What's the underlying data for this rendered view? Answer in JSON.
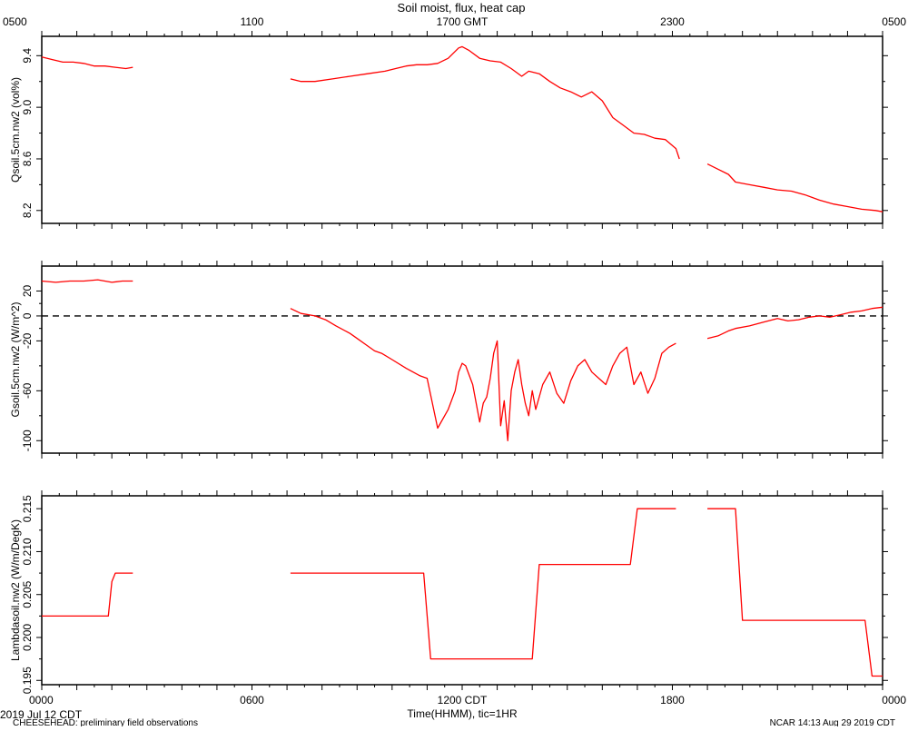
{
  "figure": {
    "title": "Soil moist, flux, heat cap",
    "top_axis_label": "1700 GMT",
    "bottom_axis_label": "Time(HHMM), tic=1HR",
    "bottom_center_label": "1200 CDT",
    "date_label": "2019 Jul 12 CDT",
    "footer_left": "CHEESEHEAD: preliminary field observations",
    "footer_right": "NCAR 14:13 Aug 29 2019 CDT",
    "series_color": "#ff0000"
  },
  "chart_data": [
    {
      "type": "line",
      "ylabel": "Qsoil.5cm.nw2 (vol%)",
      "ylim": [
        8.1,
        9.55
      ],
      "yticks": [
        "8.2",
        "8.6",
        "9.0",
        "9.4"
      ],
      "x_unit": "hours since 0000 CDT",
      "xlim": [
        0,
        24
      ],
      "top_ticks": [
        "0500",
        "1100",
        "1700 GMT",
        "2300",
        "0500"
      ],
      "segments": [
        {
          "x": [
            0,
            0.3,
            0.6,
            0.9,
            1.2,
            1.5,
            1.8,
            2.1,
            2.4,
            2.6
          ],
          "y": [
            9.39,
            9.37,
            9.35,
            9.35,
            9.34,
            9.32,
            9.32,
            9.31,
            9.3,
            9.31
          ]
        },
        {
          "x": [
            7.1,
            7.4,
            7.8,
            8.3,
            8.8,
            9.3,
            9.8,
            10.1,
            10.4,
            10.7,
            11.0,
            11.3,
            11.6,
            11.9,
            12.0,
            12.2,
            12.5,
            12.8,
            13.1,
            13.4,
            13.7,
            13.9,
            14.2,
            14.5,
            14.8,
            15.1,
            15.4,
            15.7,
            16.0,
            16.3,
            16.6,
            16.9,
            17.2,
            17.5,
            17.8,
            18.1,
            18.2
          ],
          "y": [
            9.22,
            9.2,
            9.2,
            9.22,
            9.24,
            9.26,
            9.28,
            9.3,
            9.32,
            9.33,
            9.33,
            9.34,
            9.38,
            9.46,
            9.47,
            9.44,
            9.38,
            9.36,
            9.35,
            9.3,
            9.24,
            9.28,
            9.26,
            9.2,
            9.15,
            9.12,
            9.08,
            9.12,
            9.05,
            8.92,
            8.86,
            8.8,
            8.79,
            8.76,
            8.75,
            8.68,
            8.6
          ]
        },
        {
          "x": [
            19.0,
            19.3,
            19.6,
            19.8,
            20.2,
            20.6,
            21.0,
            21.4,
            21.8,
            22.2,
            22.6,
            23.0,
            23.4,
            23.8,
            24.0
          ],
          "y": [
            8.56,
            8.52,
            8.48,
            8.42,
            8.4,
            8.38,
            8.36,
            8.35,
            8.32,
            8.28,
            8.25,
            8.23,
            8.21,
            8.2,
            8.19
          ]
        }
      ]
    },
    {
      "type": "line",
      "ylabel": "Gsoil.5cm.nw2 (W/m^2)",
      "ylim": [
        -110,
        40
      ],
      "yticks": [
        "-100",
        "-60",
        "-20",
        "0",
        "20"
      ],
      "reference_line": 0,
      "x_unit": "hours since 0000 CDT",
      "xlim": [
        0,
        24
      ],
      "segments": [
        {
          "x": [
            0,
            0.4,
            0.8,
            1.2,
            1.6,
            2.0,
            2.3,
            2.6
          ],
          "y": [
            28,
            27,
            28,
            28,
            29,
            27,
            28,
            28
          ]
        },
        {
          "x": [
            7.1,
            7.4,
            7.8,
            8.1,
            8.4,
            8.8,
            9.0,
            9.3,
            9.5,
            9.7,
            10.0,
            10.4,
            10.8,
            11.0,
            11.3,
            11.6,
            11.8,
            11.9,
            12.0,
            12.1,
            12.3,
            12.5,
            12.6,
            12.7,
            12.8,
            12.9,
            13.0,
            13.1,
            13.2,
            13.3,
            13.4,
            13.5,
            13.6,
            13.7,
            13.8,
            13.9,
            14.0,
            14.1,
            14.3,
            14.5,
            14.7,
            14.9,
            15.1,
            15.3,
            15.5,
            15.7,
            15.9,
            16.1,
            16.3,
            16.5,
            16.7,
            16.9,
            17.1,
            17.3,
            17.5,
            17.7,
            17.9,
            18.1
          ],
          "y": [
            6,
            2,
            0,
            -3,
            -8,
            -14,
            -18,
            -24,
            -28,
            -30,
            -35,
            -42,
            -48,
            -50,
            -90,
            -75,
            -60,
            -45,
            -38,
            -40,
            -55,
            -85,
            -70,
            -65,
            -50,
            -30,
            -20,
            -88,
            -68,
            -100,
            -60,
            -45,
            -35,
            -55,
            -70,
            -80,
            -60,
            -75,
            -55,
            -45,
            -62,
            -70,
            -52,
            -40,
            -35,
            -45,
            -50,
            -55,
            -40,
            -30,
            -25,
            -55,
            -45,
            -62,
            -50,
            -30,
            -25,
            -22
          ]
        },
        {
          "x": [
            19.0,
            19.3,
            19.6,
            19.8,
            20.2,
            20.6,
            21.0,
            21.3,
            21.6,
            21.9,
            22.2,
            22.5,
            22.8,
            23.1,
            23.4,
            23.7,
            24.0
          ],
          "y": [
            -18,
            -16,
            -12,
            -10,
            -8,
            -5,
            -2,
            -4,
            -3,
            -1,
            0,
            -1,
            1,
            3,
            4,
            6,
            7
          ]
        }
      ]
    },
    {
      "type": "line",
      "ylabel": "Lambdasoil.nw2 (W/m/DegK)",
      "ylim": [
        0.1945,
        0.2165
      ],
      "yticks": [
        "0.195",
        "0.200",
        "0.205",
        "0.210",
        "0.215"
      ],
      "x_unit": "hours since 0000 CDT",
      "xlim": [
        0,
        24
      ],
      "bottom_ticks": [
        "0000",
        "0600",
        "1200 CDT",
        "1800",
        "0000"
      ],
      "segments": [
        {
          "x": [
            0,
            1.9,
            2.0,
            2.1,
            2.6
          ],
          "y": [
            0.2025,
            0.2025,
            0.2065,
            0.2075,
            0.2075
          ]
        },
        {
          "x": [
            7.1,
            10.9,
            11.1,
            14.0,
            14.2,
            16.8,
            17.0,
            18.1
          ],
          "y": [
            0.2075,
            0.2075,
            0.1975,
            0.1975,
            0.2085,
            0.2085,
            0.215,
            0.215
          ]
        },
        {
          "x": [
            19.0,
            19.8,
            20.0,
            23.5,
            23.7,
            24.0
          ],
          "y": [
            0.215,
            0.215,
            0.202,
            0.202,
            0.1955,
            0.1955
          ]
        }
      ]
    }
  ]
}
